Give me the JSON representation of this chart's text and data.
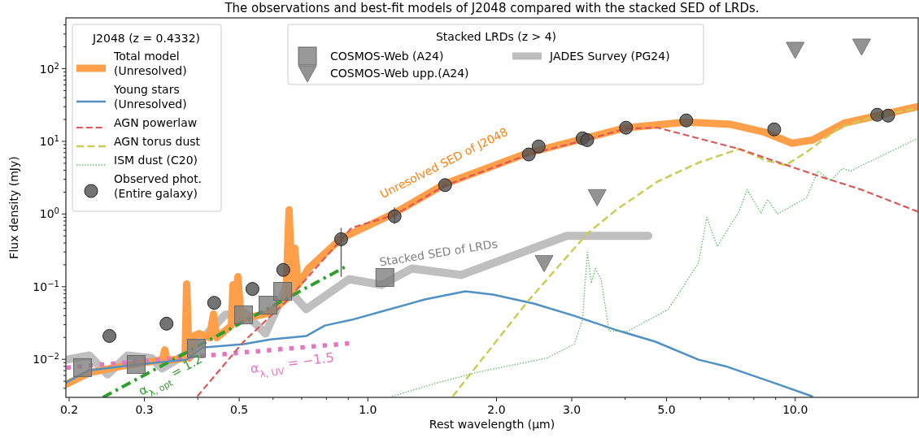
{
  "chart_data": {
    "type": "line",
    "title": "The observations and best-fit models of J2048 compared with the stacked SED of LRDs.",
    "xlabel": "Rest wavelength (μm)",
    "ylabel": "Flux density (mJy)",
    "legend_title": [
      "J2048 (z = 0.4332)",
      "Stacked LRDs (z > 4)"
    ],
    "legend": "top left",
    "log": "xy",
    "grid": false,
    "xlim": [
      0.1965,
      19.4
    ],
    "ylim": [
      0.003,
      500
    ],
    "xticks": [
      {
        "value": 0.2,
        "label": "0.2"
      },
      {
        "value": 0.3,
        "label": "0.3"
      },
      {
        "value": 0.4,
        "label": null
      },
      {
        "value": 0.5,
        "label": "0.5"
      },
      {
        "value": 0.6,
        "label": null
      },
      {
        "value": 0.7,
        "label": null
      },
      {
        "value": 0.8,
        "label": null
      },
      {
        "value": 0.9,
        "label": null
      },
      {
        "value": 1,
        "label": "1.0"
      },
      {
        "value": 2,
        "label": "2.0"
      },
      {
        "value": 3,
        "label": "3.0"
      },
      {
        "value": 4,
        "label": null
      },
      {
        "value": 5,
        "label": "5.0"
      },
      {
        "value": 6,
        "label": null
      },
      {
        "value": 7,
        "label": null
      },
      {
        "value": 8,
        "label": null
      },
      {
        "value": 9,
        "label": null
      },
      {
        "value": 10,
        "label": "10.0"
      }
    ],
    "yticks": [
      {
        "value": 0.004,
        "label": null
      },
      {
        "value": 0.005,
        "label": null
      },
      {
        "value": 0.006,
        "label": null
      },
      {
        "value": 0.007,
        "label": null
      },
      {
        "value": 0.008,
        "label": null
      },
      {
        "value": 0.009,
        "label": null
      },
      {
        "value": 0.01,
        "label": "10$^{−2}$"
      },
      {
        "value": 0.02,
        "label": null
      },
      {
        "value": 0.03,
        "label": null
      },
      {
        "value": 0.04,
        "label": null
      },
      {
        "value": 0.05,
        "label": null
      },
      {
        "value": 0.06,
        "label": null
      },
      {
        "value": 0.07,
        "label": null
      },
      {
        "value": 0.08,
        "label": null
      },
      {
        "value": 0.09,
        "label": null
      },
      {
        "value": 0.1,
        "label": "10$^{−1}$"
      },
      {
        "value": 0.2,
        "label": null
      },
      {
        "value": 0.3,
        "label": null
      },
      {
        "value": 0.4,
        "label": null
      },
      {
        "value": 0.5,
        "label": null
      },
      {
        "value": 0.6,
        "label": null
      },
      {
        "value": 0.7,
        "label": null
      },
      {
        "value": 0.8,
        "label": null
      },
      {
        "value": 0.9,
        "label": null
      },
      {
        "value": 1,
        "label": "10$^{0}$"
      },
      {
        "value": 2,
        "label": null
      },
      {
        "value": 3,
        "label": null
      },
      {
        "value": 4,
        "label": null
      },
      {
        "value": 5,
        "label": null
      },
      {
        "value": 6,
        "label": null
      },
      {
        "value": 7,
        "label": null
      },
      {
        "value": 8,
        "label": null
      },
      {
        "value": 9,
        "label": null
      },
      {
        "value": 10,
        "label": "10$^{1}$"
      },
      {
        "value": 20,
        "label": null
      },
      {
        "value": 30,
        "label": null
      },
      {
        "value": 40,
        "label": null
      },
      {
        "value": 50,
        "label": null
      },
      {
        "value": 60,
        "label": null
      },
      {
        "value": 70,
        "label": null
      },
      {
        "value": 80,
        "label": null
      },
      {
        "value": 90,
        "label": null
      },
      {
        "value": 100,
        "label": "10$^{2}$"
      },
      {
        "value": 200,
        "label": null
      },
      {
        "value": 300,
        "label": null
      },
      {
        "value": 400,
        "label": null
      }
    ],
    "annotations": [
      "Unresolved SED of J2048",
      "Stacked SED of LRDs",
      "α$_{λ, opt}$ = 1.2",
      "α$_{λ, UV}$ = −1.5"
    ],
    "series": [
      {
        "name": "Total model\n(Unresolved)",
        "line_style": "solid",
        "color": "#ff9f4a",
        "x": [
          0.197,
          0.2228,
          0.2655,
          0.3232,
          0.3304,
          0.3348,
          0.3392,
          0.3735,
          0.3767,
          0.3817,
          0.3936,
          0.4023,
          0.4259,
          0.4353,
          0.443,
          0.4794,
          0.4836,
          0.49,
          0.4965,
          0.5052,
          0.5836,
          0.6427,
          0.6541,
          0.6656,
          0.6745,
          0.6864,
          0.7265,
          0.8656,
          1.155,
          1.516,
          2.369,
          3.219,
          4.023,
          5.564,
          7.074,
          8.434,
          9.827,
          10.96,
          13.06,
          15.56,
          19.36
        ],
        "values": [
          0.00457,
          0.00655,
          0.00805,
          0.00965,
          0.00965,
          0.0135,
          0.00965,
          0.0104,
          0.109,
          0.0104,
          0.0214,
          0.0226,
          0.0199,
          0.042,
          0.0199,
          0.0292,
          0.106,
          0.0333,
          0.137,
          0.0359,
          0.043,
          0.0667,
          1.14,
          0.082,
          0.339,
          0.106,
          0.178,
          0.461,
          1.03,
          2.6,
          6.92,
          11.0,
          15.4,
          18.4,
          17.1,
          13.5,
          9.42,
          10.4,
          17.9,
          22.6,
          30.1
        ]
      },
      {
        "name": "Young stars\n(Unresolved)",
        "line_style": "solid",
        "color": "#4f91c4",
        "x": [
          0.197,
          0.2228,
          0.286,
          0.3767,
          0.411,
          0.512,
          0.591,
          0.717,
          0.793,
          0.916,
          1.091,
          1.359,
          1.691,
          1.963,
          2.443,
          3.04,
          3.785,
          4.71,
          5.94,
          6.87,
          9.2,
          10.96
        ],
        "values": [
          0.00481,
          0.00708,
          0.00848,
          0.0099,
          0.0146,
          0.0162,
          0.0188,
          0.0209,
          0.0292,
          0.035,
          0.0465,
          0.0667,
          0.0863,
          0.0778,
          0.0586,
          0.0398,
          0.0257,
          0.0175,
          0.0099,
          0.00805,
          0.00445,
          0.0031
        ]
      },
      {
        "name": "AGN powerlaw",
        "line_style": "dashed",
        "color": "#e05555",
        "x": [
          0.399,
          0.512,
          0.645,
          0.916,
          1.155,
          1.516,
          2.369,
          3.219,
          4.023,
          4.77,
          5.94,
          7.39,
          9.2,
          11.45,
          14.26,
          19.36
        ],
        "values": [
          0.0031,
          0.0175,
          0.0633,
          0.645,
          0.974,
          2.47,
          6.57,
          10.4,
          15.0,
          15.4,
          11.0,
          7.87,
          5.08,
          3.27,
          2.17,
          1.08
        ]
      },
      {
        "name": "AGN torus dust",
        "line_style": "dashed",
        "color": "#cccc55",
        "x": [
          1.58,
          2.369,
          3.262,
          3.835,
          4.77,
          5.94,
          7.39,
          8.54,
          9.49,
          10.63,
          12.67,
          15.36,
          19.36
        ],
        "values": [
          0.0031,
          0.0633,
          0.539,
          1.17,
          2.81,
          5.08,
          7.87,
          5.48,
          4.7,
          7.1,
          15.4,
          22.1,
          28.6
        ]
      },
      {
        "name": "ISM dust (C20)",
        "line_style": "dotted",
        "color": "#4cb84c",
        "x": [
          1.14,
          1.464,
          1.822,
          2.62,
          3.04,
          3.18,
          3.262,
          3.333,
          3.407,
          3.513,
          3.669,
          4.058,
          5.05,
          5.94,
          6.21,
          6.57,
          6.99,
          7.39,
          7.72,
          8.32,
          8.62,
          9.08,
          10.63,
          11.3,
          12.13,
          12.89,
          13.47,
          19.36
        ],
        "values": [
          0.0031,
          0.00481,
          0.00673,
          0.0104,
          0.0162,
          0.035,
          0.298,
          0.112,
          0.178,
          0.127,
          0.0244,
          0.0244,
          0.049,
          0.213,
          0.902,
          0.357,
          0.645,
          1.08,
          2.17,
          1.03,
          1.59,
          1.0,
          1.67,
          3.92,
          2.88,
          4.24,
          3.92,
          11.0
        ]
      },
      {
        "name": "Observed phot.\n(Entire galaxy)",
        "type": "scatter",
        "marker": "circle",
        "color": "#505050",
        "x": [
          0.2485,
          0.338,
          0.437,
          0.537,
          0.634,
          0.866,
          1.155,
          1.516,
          2.38,
          2.51,
          3.18,
          3.26,
          4.02,
          5.56,
          8.93,
          15.56,
          16.5
        ],
        "values": [
          0.021,
          0.031,
          0.06,
          0.093,
          0.17,
          0.45,
          0.93,
          2.5,
          6.6,
          8.5,
          11.0,
          10.4,
          15.4,
          19.4,
          14.6,
          23.2,
          22.6
        ],
        "errors": [
          null,
          null,
          null,
          null,
          null,
          [
            0.137,
            0.645
          ],
          [
            0.73,
            1.23
          ],
          null,
          null,
          null,
          null,
          null,
          null,
          null,
          null,
          null,
          null
        ]
      },
      {
        "line_style": "dashdot",
        "color": "#2ca02c",
        "x": [
          0.24,
          0.892
        ],
        "values": [
          0.003,
          0.192
        ]
      },
      {
        "line_style": "dotted",
        "color": "#e377c2",
        "x": [
          0.197,
          0.904
        ],
        "values": [
          0.0077,
          0.0166
        ]
      },
      {
        "name": "COSMOS-Web (A24)",
        "type": "scatter",
        "marker": "square",
        "color": "#808080",
        "x": [
          0.215,
          0.287,
          0.397,
          0.512,
          0.584,
          0.632,
          1.096
        ],
        "values": [
          0.0077,
          0.0085,
          0.0142,
          0.041,
          0.0557,
          0.0863,
          0.134
        ]
      },
      {
        "name": "COSMOS-Web upp.(A24)",
        "type": "scatter",
        "marker": "triangle",
        "color": "#808080",
        "x": [
          2.585,
          3.44,
          10.0,
          14.3
        ],
        "values": [
          0.213,
          1.72,
          183,
          203
        ]
      },
      {
        "name": "JADES Survey (PG24)",
        "line_style": "solid",
        "color": "#bfbfbf",
        "x": [
          0.197,
          0.223,
          0.246,
          0.274,
          0.312,
          0.33,
          0.382,
          0.463,
          0.512,
          0.576,
          0.645,
          0.717,
          0.904,
          1.077,
          1.267,
          1.654,
          2.92,
          4.53
        ],
        "values": [
          0.0099,
          0.0113,
          0.0062,
          0.0113,
          0.0104,
          0.0075,
          0.0125,
          0.041,
          0.045,
          0.0226,
          0.098,
          0.049,
          0.127,
          0.106,
          0.178,
          0.145,
          0.5,
          0.5
        ]
      }
    ]
  }
}
